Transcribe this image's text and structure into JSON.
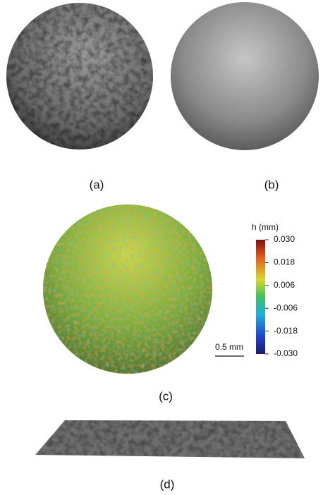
{
  "panels": [
    {
      "label": "(a)"
    },
    {
      "label": "(b)"
    },
    {
      "label": "(c)",
      "colorbar": {
        "title": "h (mm)",
        "range": [
          -0.03,
          0.03
        ],
        "ticks": [
          {
            "value": 0.03,
            "label": "0.030"
          },
          {
            "value": 0.018,
            "label": "0.018"
          },
          {
            "value": 0.006,
            "label": "0.006"
          },
          {
            "value": -0.006,
            "label": "-0.006"
          },
          {
            "value": -0.018,
            "label": "-0.018"
          },
          {
            "value": -0.03,
            "label": "-0.030"
          }
        ]
      },
      "scale_bar": "0.5 mm"
    },
    {
      "label": "(d)"
    }
  ]
}
